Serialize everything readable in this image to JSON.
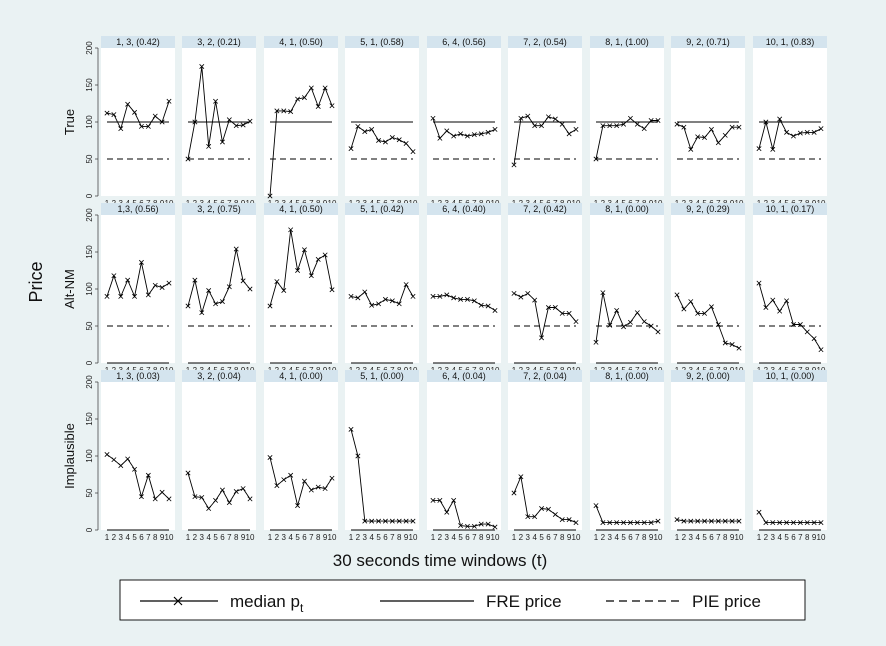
{
  "chart_data": {
    "type": "line",
    "ylabel": "Price",
    "xlabel": "30 seconds time windows (t)",
    "rows": [
      "True",
      "Alt-NM",
      "Implausible"
    ],
    "x": [
      1,
      2,
      3,
      4,
      5,
      6,
      7,
      8,
      9,
      10
    ],
    "x_tick_labels": [
      "1",
      "2",
      "3",
      "4",
      "5",
      "6",
      "7",
      "8",
      "9",
      "10"
    ],
    "ylim": [
      0,
      200
    ],
    "y_ticks": [
      0,
      50,
      100,
      150,
      200
    ],
    "legend": {
      "position": "bottom",
      "items": [
        {
          "label_main": "median p",
          "label_sub": "t",
          "style": "solid-x"
        },
        {
          "label_main": "FRE price",
          "label_sub": "",
          "style": "solid"
        },
        {
          "label_main": "PIE price",
          "label_sub": "",
          "style": "dashed"
        }
      ]
    },
    "panels": [
      [
        {
          "title": "1, 3, (0.42)",
          "fre": 100,
          "pie": 50,
          "median": [
            112,
            110,
            91,
            124,
            113,
            94,
            94,
            108,
            100,
            128
          ]
        },
        {
          "title": "3, 2, (0.21)",
          "fre": 100,
          "pie": 50,
          "median": [
            50,
            100,
            175,
            67,
            128,
            73,
            103,
            95,
            96,
            101
          ]
        },
        {
          "title": "4, 1, (0.50)",
          "fre": 100,
          "pie": 50,
          "median": [
            0,
            115,
            115,
            114,
            131,
            133,
            146,
            121,
            146,
            122
          ]
        },
        {
          "title": "5, 1, (0.58)",
          "fre": 100,
          "pie": 50,
          "median": [
            64,
            94,
            87,
            90,
            75,
            73,
            79,
            76,
            71,
            60
          ]
        },
        {
          "title": "6, 4, (0.56)",
          "fre": 100,
          "pie": 50,
          "median": [
            105,
            78,
            88,
            81,
            84,
            81,
            83,
            84,
            86,
            90
          ]
        },
        {
          "title": "7, 2, (0.54)",
          "fre": 100,
          "pie": 50,
          "median": [
            42,
            105,
            108,
            95,
            95,
            107,
            104,
            97,
            84,
            90
          ]
        },
        {
          "title": "8, 1, (1.00)",
          "fre": 100,
          "pie": 50,
          "median": [
            50,
            95,
            95,
            95,
            97,
            105,
            97,
            91,
            102,
            102
          ]
        },
        {
          "title": "9, 2, (0.71)",
          "fre": 100,
          "pie": 50,
          "median": [
            97,
            93,
            63,
            80,
            79,
            90,
            72,
            82,
            93,
            93
          ]
        },
        {
          "title": "10, 1, (0.83)",
          "fre": 100,
          "pie": 50,
          "median": [
            64,
            100,
            63,
            104,
            86,
            81,
            85,
            86,
            86,
            91
          ]
        }
      ],
      [
        {
          "title": "1,3, (0.56)",
          "fre": 0,
          "pie": 50,
          "median": [
            90,
            118,
            90,
            112,
            90,
            136,
            92,
            105,
            102,
            108
          ]
        },
        {
          "title": "3, 2, (0.75)",
          "fre": 0,
          "pie": 50,
          "median": [
            77,
            112,
            68,
            98,
            80,
            83,
            103,
            154,
            111,
            100
          ]
        },
        {
          "title": "4, 1, (0.50)",
          "fre": 0,
          "pie": 50,
          "median": [
            77,
            110,
            98,
            180,
            125,
            153,
            118,
            140,
            146,
            99
          ]
        },
        {
          "title": "5, 1, (0.42)",
          "fre": 0,
          "pie": 50,
          "median": [
            90,
            88,
            96,
            78,
            80,
            86,
            84,
            80,
            106,
            90
          ]
        },
        {
          "title": "6, 4, (0.40)",
          "fre": 0,
          "pie": 50,
          "median": [
            90,
            90,
            92,
            88,
            86,
            86,
            84,
            78,
            77,
            71
          ]
        },
        {
          "title": "7, 2, (0.42)",
          "fre": 0,
          "pie": 50,
          "median": [
            94,
            89,
            94,
            85,
            34,
            75,
            75,
            67,
            67,
            56
          ]
        },
        {
          "title": "8, 1, (0.00)",
          "fre": 0,
          "pie": 50,
          "median": [
            28,
            95,
            51,
            71,
            49,
            55,
            68,
            56,
            50,
            42
          ]
        },
        {
          "title": "9, 2, (0.29)",
          "fre": 0,
          "pie": 50,
          "median": [
            92,
            73,
            83,
            67,
            67,
            76,
            52,
            27,
            25,
            20
          ]
        },
        {
          "title": "10, 1, (0.17)",
          "fre": 0,
          "pie": 50,
          "median": [
            108,
            75,
            85,
            70,
            84,
            52,
            52,
            42,
            33,
            18
          ]
        }
      ],
      [
        {
          "title": "1, 3, (0.03)",
          "fre": 0,
          "pie": null,
          "median": [
            102,
            95,
            87,
            96,
            82,
            45,
            74,
            42,
            51,
            42
          ]
        },
        {
          "title": "3, 2, (0.04)",
          "fre": 0,
          "pie": null,
          "median": [
            77,
            45,
            44,
            29,
            40,
            54,
            37,
            52,
            56,
            42
          ]
        },
        {
          "title": "4, 1, (0.00)",
          "fre": 0,
          "pie": null,
          "median": [
            98,
            60,
            68,
            74,
            33,
            66,
            54,
            58,
            56,
            70
          ]
        },
        {
          "title": "5, 1, (0.00)",
          "fre": 0,
          "pie": null,
          "median": [
            136,
            100,
            12,
            12,
            12,
            12,
            12,
            12,
            12,
            12
          ]
        },
        {
          "title": "6, 4, (0.04)",
          "fre": 0,
          "pie": null,
          "median": [
            40,
            40,
            24,
            40,
            6,
            5,
            5,
            8,
            8,
            4
          ]
        },
        {
          "title": "7, 2, (0.04)",
          "fre": 0,
          "pie": null,
          "median": [
            50,
            72,
            18,
            18,
            29,
            28,
            21,
            14,
            14,
            10
          ]
        },
        {
          "title": "8, 1, (0.00)",
          "fre": 0,
          "pie": null,
          "median": [
            33,
            10,
            10,
            10,
            10,
            10,
            10,
            10,
            10,
            12
          ]
        },
        {
          "title": "9, 2, (0.00)",
          "fre": 0,
          "pie": null,
          "median": [
            14,
            12,
            12,
            12,
            12,
            12,
            12,
            12,
            12,
            12
          ]
        },
        {
          "title": "10, 1, (0.00)",
          "fre": 0,
          "pie": null,
          "median": [
            24,
            10,
            10,
            10,
            10,
            10,
            10,
            10,
            10,
            10
          ]
        }
      ]
    ]
  }
}
